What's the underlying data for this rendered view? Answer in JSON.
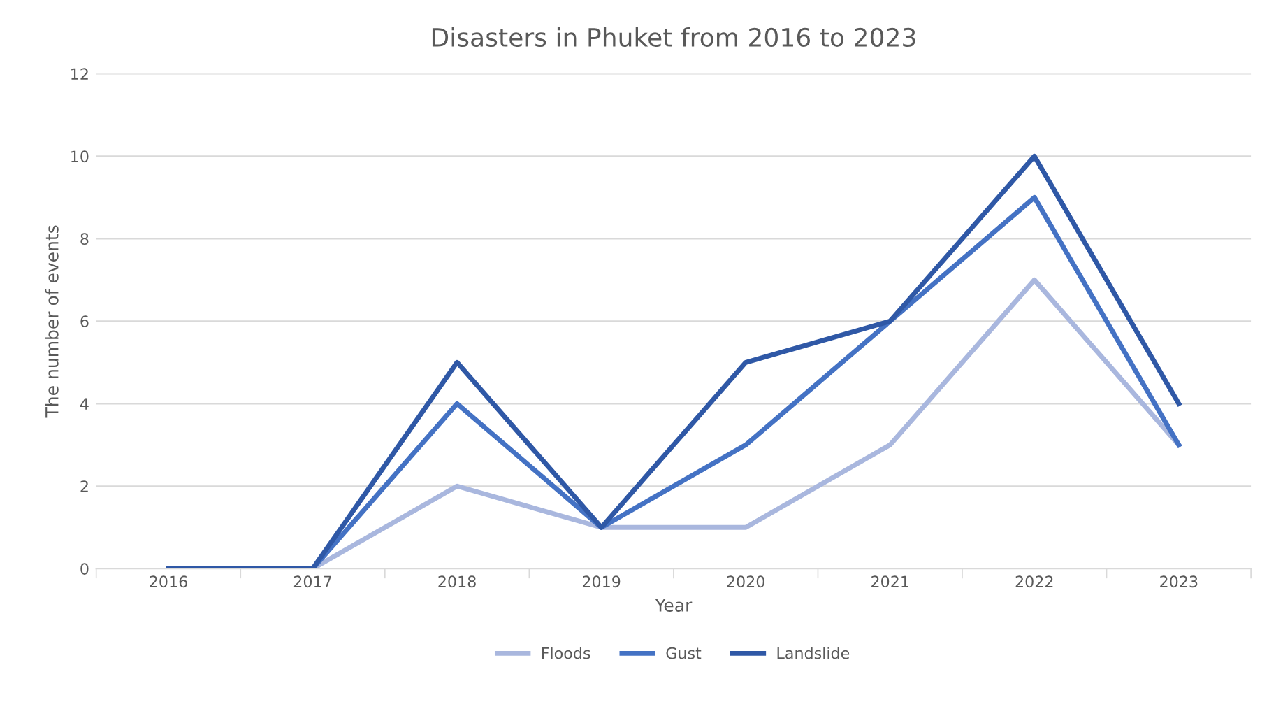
{
  "chart_data": {
    "type": "line",
    "title": "Disasters in Phuket from 2016 to 2023",
    "xlabel": "Year",
    "ylabel": "The number of events",
    "categories": [
      "2016",
      "2017",
      "2018",
      "2019",
      "2020",
      "2021",
      "2022",
      "2023"
    ],
    "series": [
      {
        "name": "Floods",
        "color": "#a9b7de",
        "values": [
          0,
          0,
          2,
          1,
          1,
          3,
          7,
          3
        ]
      },
      {
        "name": "Gust",
        "color": "#4472c4",
        "values": [
          0,
          0,
          4,
          1,
          3,
          6,
          9,
          3
        ]
      },
      {
        "name": "Landslide",
        "color": "#2f58a6",
        "values": [
          0,
          0,
          5,
          1,
          5,
          6,
          10,
          4
        ]
      }
    ],
    "ylim": [
      0,
      12
    ],
    "yticks": [
      0,
      2,
      4,
      6,
      8,
      10,
      12
    ],
    "grid": "y",
    "legend": "bottom",
    "marker": "none",
    "line_style": "solid"
  }
}
